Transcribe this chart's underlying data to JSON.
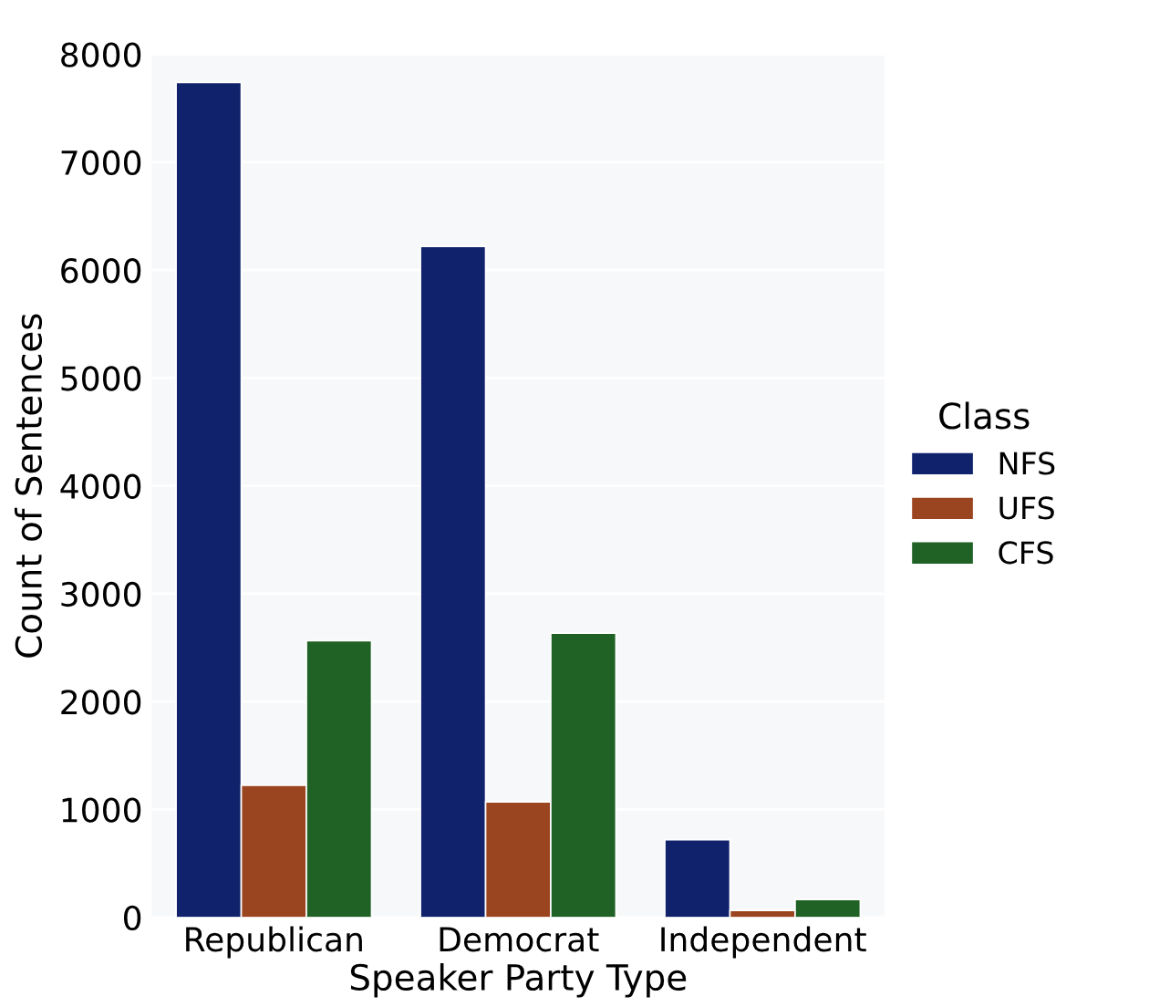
{
  "chart_data": {
    "type": "bar",
    "xlabel": "Speaker Party Type",
    "ylabel": "Count of Sentences",
    "legend_title": "Class",
    "categories": [
      "Republican",
      "Democrat",
      "Independent"
    ],
    "series": [
      {
        "name": "NFS",
        "color": "#0f226b",
        "values": [
          7740,
          6220,
          720
        ]
      },
      {
        "name": "UFS",
        "color": "#9b4520",
        "values": [
          1225,
          1070,
          65
        ]
      },
      {
        "name": "CFS",
        "color": "#206225",
        "values": [
          2565,
          2635,
          165
        ]
      }
    ],
    "ylim": [
      0,
      8000
    ],
    "yticks": [
      0,
      1000,
      2000,
      3000,
      4000,
      5000,
      6000,
      7000,
      8000
    ],
    "grid": "y",
    "legend": "right"
  }
}
